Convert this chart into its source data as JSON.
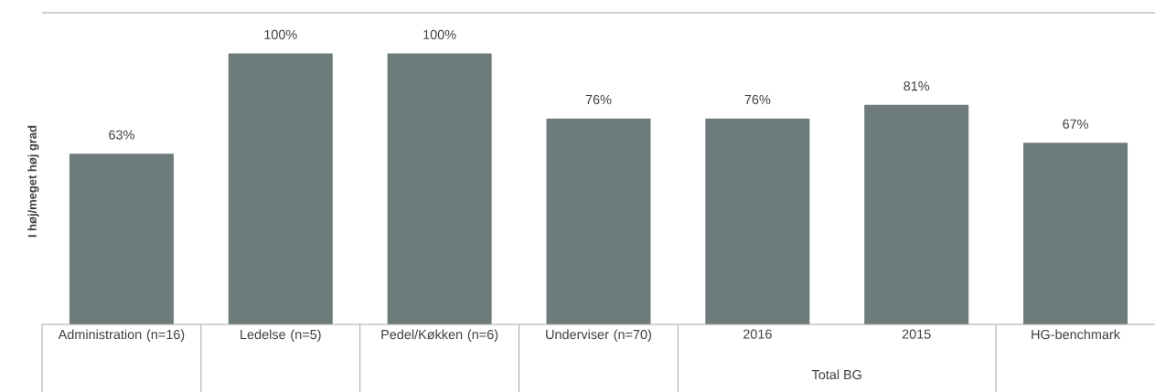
{
  "chart_data": {
    "type": "bar",
    "ylabel": "I høj/meget høj grad",
    "categories": [
      "Administration (n=16)",
      "Ledelse (n=5)",
      "Pedel/Køkken (n=6)",
      "Underviser (n=70)",
      "2016",
      "2015",
      "HG-benchmark"
    ],
    "values": [
      63,
      100,
      100,
      76,
      76,
      81,
      67
    ],
    "value_labels": [
      "63%",
      "100%",
      "100%",
      "76%",
      "76%",
      "81%",
      "67%"
    ],
    "color": "#6e7b7b",
    "ylim": [
      0,
      115
    ],
    "annotations": [
      "Total BG"
    ]
  }
}
